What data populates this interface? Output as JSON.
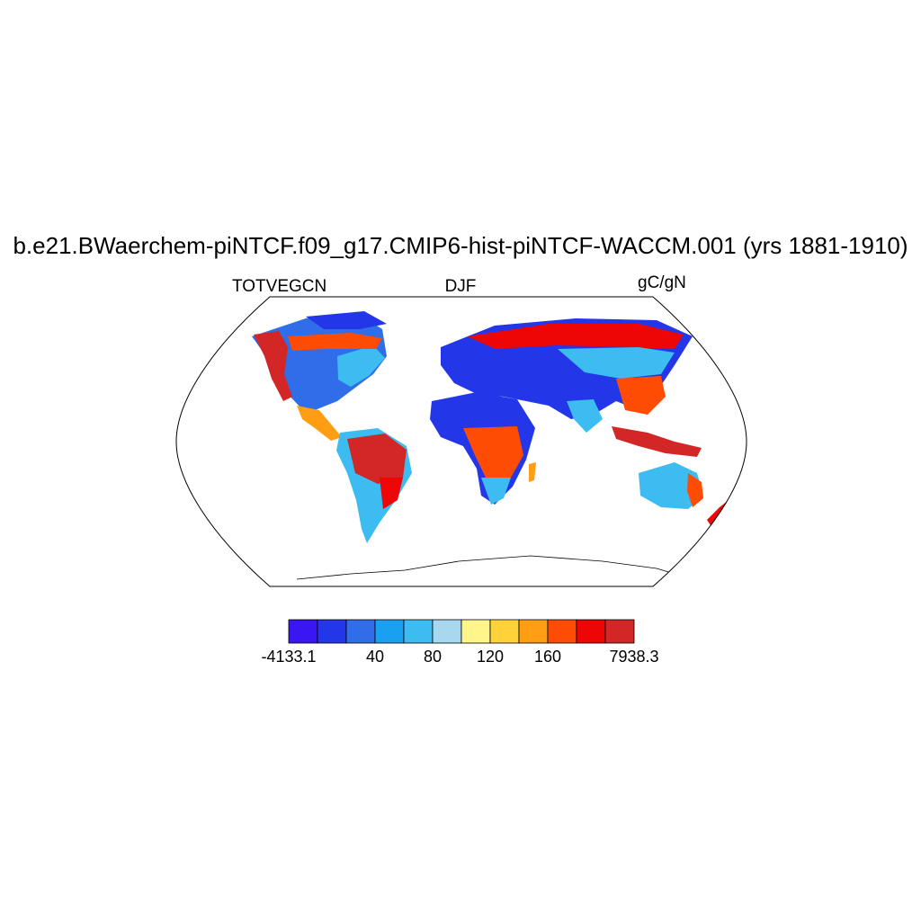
{
  "header": {
    "title": "b.e21.BWaerchem-piNTCF.f09_g17.CMIP6-hist-piNTCF-WACCM.001 (yrs 1881-1910)",
    "variable": "TOTVEGCN",
    "season": "DJF",
    "units": "gC/gN"
  },
  "colorbar": {
    "colors": [
      "#3a16f2",
      "#2337e8",
      "#2f6ee8",
      "#1aa0f0",
      "#3cbcf0",
      "#a8d8f0",
      "#fff58a",
      "#ffd23a",
      "#ff9e13",
      "#ff4c05",
      "#ee0505",
      "#d32626"
    ],
    "tick_labels": [
      {
        "label": "-4133.1",
        "boundary": 0
      },
      {
        "label": "40",
        "boundary": 3
      },
      {
        "label": "80",
        "boundary": 5
      },
      {
        "label": "120",
        "boundary": 7
      },
      {
        "label": "160",
        "boundary": 9
      },
      {
        "label": "7938.3",
        "boundary": 12
      }
    ]
  }
}
